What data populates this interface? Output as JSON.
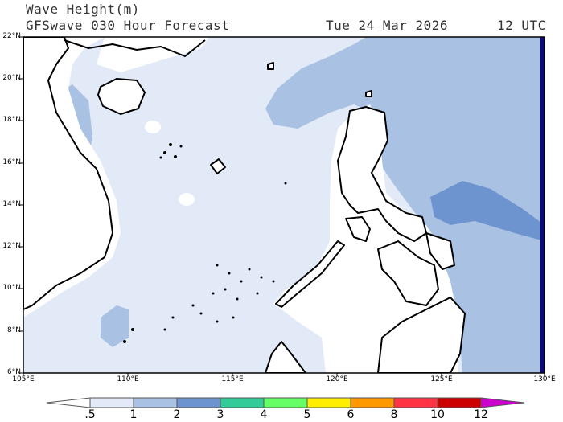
{
  "header": {
    "title": "Wave Height(m)",
    "subtitle": "GFSwave 030 Hour Forecast",
    "valid_date": "Tue 24 Mar 2026",
    "valid_time": "12 UTC"
  },
  "axes": {
    "lat_labels": [
      "22°N",
      "20°N",
      "18°N",
      "16°N",
      "14°N",
      "12°N",
      "10°N",
      "8°N",
      "6°N"
    ],
    "lon_labels": [
      "105°E",
      "110°E",
      "115°E",
      "120°E",
      "125°E",
      "130°E"
    ]
  },
  "colorbar": {
    "labels": [
      ".5",
      "1",
      "2",
      "3",
      "4",
      "5",
      "6",
      "8",
      "10",
      "12"
    ],
    "colors": [
      "#ffffff",
      "#e2eaf7",
      "#a9c1e2",
      "#6e94cf",
      "#33cc99",
      "#66ff66",
      "#ffee00",
      "#ff9900",
      "#ff3344",
      "#cc0000",
      "#cc00cc"
    ]
  },
  "colors": {
    "land": "#ffffff",
    "coastline": "#000000",
    "edge_strip": "#0a0a7a"
  }
}
